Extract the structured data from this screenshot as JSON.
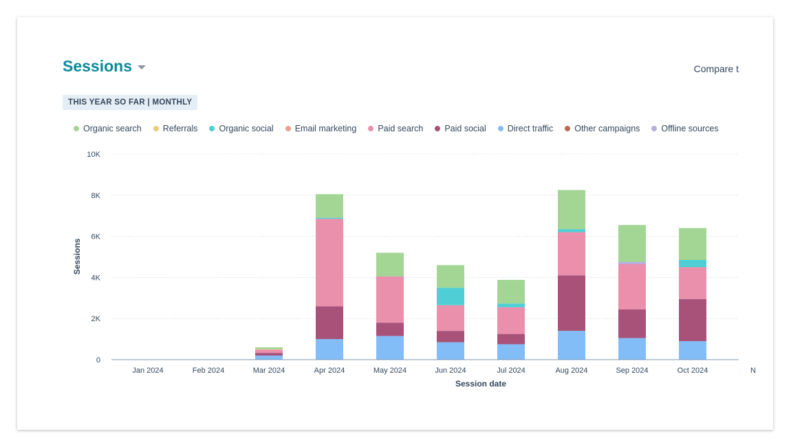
{
  "header": {
    "title": "Sessions",
    "compare_label": "Compare t",
    "date_range": "THIS YEAR SO FAR | MONTHLY"
  },
  "colors": {
    "Organic search": "#a3d595",
    "Referrals": "#f2c97c",
    "Organic social": "#4fcfd5",
    "Email marketing": "#eaa08c",
    "Paid search": "#ea90ad",
    "Paid social": "#a8527a",
    "Direct traffic": "#82bdf7",
    "Other campaigns": "#b86a52",
    "Offline sources": "#b6aee0"
  },
  "chart_data": {
    "type": "bar",
    "stacked": true,
    "xlabel": "Session date",
    "ylabel": "Sessions",
    "ylim": [
      0,
      10000
    ],
    "yticks": [
      0,
      2000,
      4000,
      6000,
      8000,
      10000
    ],
    "ytick_labels": [
      "0",
      "2K",
      "4K",
      "6K",
      "8K",
      "10K"
    ],
    "grid": true,
    "legend_position": "top",
    "categories": [
      "Jan 2024",
      "Feb 2024",
      "Mar 2024",
      "Apr 2024",
      "May 2024",
      "Jun 2024",
      "Jul 2024",
      "Aug 2024",
      "Sep 2024",
      "Oct 2024",
      "N"
    ],
    "series": [
      {
        "name": "Direct traffic",
        "values": [
          0,
          0,
          200,
          1000,
          1150,
          850,
          750,
          1400,
          1050,
          900,
          0
        ]
      },
      {
        "name": "Paid social",
        "values": [
          0,
          0,
          130,
          1600,
          650,
          550,
          500,
          2700,
          1400,
          2050,
          0
        ]
      },
      {
        "name": "Paid search",
        "values": [
          0,
          0,
          150,
          4250,
          2250,
          1250,
          1300,
          2100,
          2200,
          1550,
          0
        ]
      },
      {
        "name": "Email marketing",
        "values": [
          0,
          0,
          20,
          0,
          0,
          0,
          0,
          0,
          0,
          0,
          0
        ]
      },
      {
        "name": "Organic social",
        "values": [
          0,
          0,
          0,
          50,
          0,
          850,
          180,
          150,
          0,
          350,
          0
        ]
      },
      {
        "name": "Referrals",
        "values": [
          0,
          0,
          10,
          0,
          0,
          0,
          0,
          0,
          0,
          0,
          0
        ]
      },
      {
        "name": "Offline sources",
        "values": [
          0,
          0,
          0,
          0,
          0,
          0,
          0,
          0,
          100,
          0,
          0
        ]
      },
      {
        "name": "Other campaigns",
        "values": [
          0,
          0,
          0,
          0,
          0,
          0,
          0,
          0,
          0,
          0,
          0
        ]
      },
      {
        "name": "Organic search",
        "values": [
          0,
          0,
          90,
          1150,
          1150,
          1100,
          1150,
          1900,
          1800,
          1550,
          0
        ]
      }
    ],
    "legend": [
      "Organic search",
      "Referrals",
      "Organic social",
      "Email marketing",
      "Paid search",
      "Paid social",
      "Direct traffic",
      "Other campaigns",
      "Offline sources"
    ]
  }
}
